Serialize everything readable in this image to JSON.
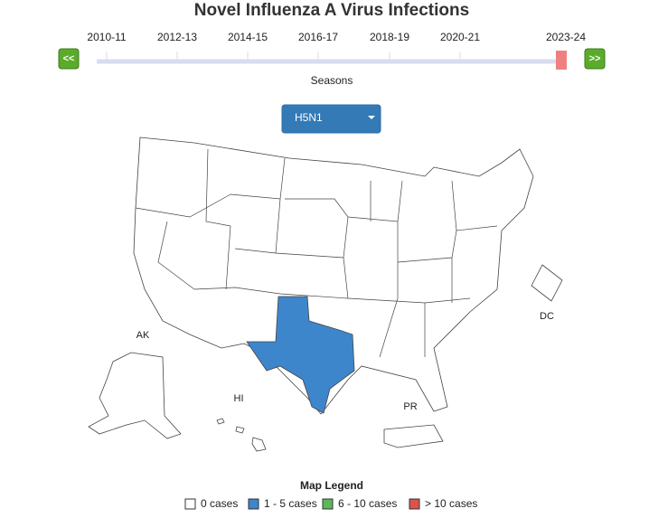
{
  "title": "Novel Influenza A Virus Infections",
  "slider": {
    "seasons": [
      "2010-11",
      "2012-13",
      "2014-15",
      "2016-17",
      "2018-19",
      "2020-21",
      "2023-24"
    ],
    "prev_button": "<<",
    "next_button": ">>",
    "label": "Seasons"
  },
  "dropdown": {
    "selected": "H5N1"
  },
  "map": {
    "labels": [
      "AK",
      "HI",
      "DC",
      "PR"
    ]
  },
  "legend": {
    "title": "Map Legend",
    "items": [
      {
        "label": "0 cases",
        "color": "#ffffff"
      },
      {
        "label": "1 - 5 cases",
        "color": "#3d86cc"
      },
      {
        "label": "6 - 10 cases",
        "color": "#5cb85c"
      },
      {
        "label": "> 10 cases",
        "color": "#d9534f"
      }
    ]
  }
}
